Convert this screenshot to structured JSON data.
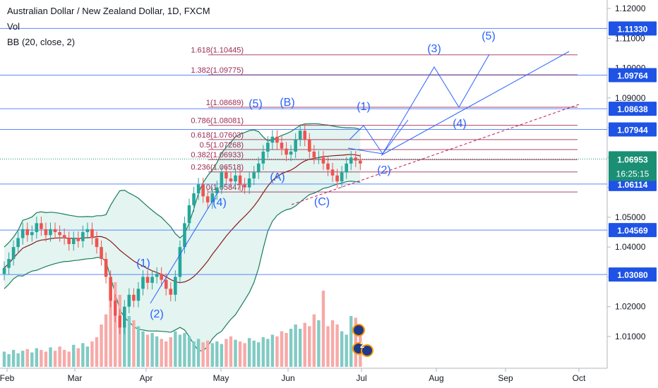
{
  "header": {
    "title": "Australian Dollar / New Zealand Dollar, 1D, FXCM",
    "volume_label": "Vol",
    "bb_label": "BB (20, close, 2)"
  },
  "colors": {
    "up": "#26a69a",
    "down": "#ef5350",
    "vol_up": "#80cbc4",
    "vol_down": "#f7a9a7",
    "bb_fill": "#e0f3ef",
    "bb_band": "#1b7c5a",
    "bb_basis": "#8b1a1a",
    "hline": "#2962ff",
    "fib": "#9c2a4f",
    "wave": "#2962ff",
    "tag_bg": "#1e53e5",
    "current_tag_bg": "#1a8f74",
    "axis_text": "#131722"
  },
  "chart_data": {
    "type": "candlestick",
    "symbol": "Australian Dollar / New Zealand Dollar, 1D, FXCM",
    "indicators": [
      "Vol",
      "BB (20, close, 2)"
    ],
    "x_ticks": [
      "Feb",
      "Mar",
      "Apr",
      "May",
      "Jun",
      "Jul",
      "Aug",
      "Sep",
      "Oct"
    ],
    "y_ticks": [
      "1.12000",
      "1.11000",
      "1.10000",
      "1.09000",
      "1.08000",
      "1.07000",
      "1.06000",
      "1.05000",
      "1.04000",
      "1.03000",
      "1.02000",
      "1.01000"
    ],
    "y_range": [
      1.0,
      1.122
    ],
    "horizontal_levels": [
      1.1133,
      1.09764,
      1.08638,
      1.07944,
      1.06114,
      1.04569,
      1.0308
    ],
    "price_tags": [
      "1.11330",
      "1.09764",
      "1.08638",
      "1.07944",
      "1.06114",
      "1.04569",
      "1.03080"
    ],
    "current_price": "1.06953",
    "countdown": "16:25:15",
    "fib_levels": [
      {
        "label": "1.618(1.10445)",
        "value": 1.10445
      },
      {
        "label": "1.382(1.09775)",
        "value": 1.09775
      },
      {
        "label": "1(1.08689)",
        "value": 1.08689
      },
      {
        "label": "0.786(1.08081)",
        "value": 1.08081
      },
      {
        "label": "0.618(1.07603)",
        "value": 1.07603
      },
      {
        "label": "0.5(1.07268)",
        "value": 1.07268
      },
      {
        "label": "0.382(1.06933)",
        "value": 1.06933
      },
      {
        "label": "0.236(1.06518)",
        "value": 1.06518
      },
      {
        "label": "0(1.05847)",
        "value": 1.05847
      }
    ],
    "wave_labels": [
      "(1)",
      "(2)",
      "(4)",
      "(5)",
      "(B)",
      "(A)",
      "(C)",
      "(1)",
      "(2)",
      "(3)",
      "(4)",
      "(5)"
    ],
    "candles_close": [
      1.033,
      1.036,
      1.04,
      1.043,
      1.046,
      1.044,
      1.045,
      1.048,
      1.046,
      1.044,
      1.046,
      1.045,
      1.044,
      1.043,
      1.041,
      1.043,
      1.042,
      1.045,
      1.046,
      1.043,
      1.04,
      1.036,
      1.03,
      1.022,
      1.017,
      1.013,
      1.02,
      1.024,
      1.022,
      1.026,
      1.03,
      1.028,
      1.03,
      1.031,
      1.029,
      1.026,
      1.024,
      1.03,
      1.04,
      1.048,
      1.054,
      1.058,
      1.061,
      1.057,
      1.055,
      1.058,
      1.06,
      1.065,
      1.063,
      1.062,
      1.064,
      1.061,
      1.06,
      1.063,
      1.065,
      1.068,
      1.072,
      1.075,
      1.077,
      1.075,
      1.073,
      1.071,
      1.072,
      1.076,
      1.079,
      1.076,
      1.072,
      1.07,
      1.07,
      1.068,
      1.066,
      1.064,
      1.062,
      1.065,
      1.068,
      1.07,
      1.069,
      1.068
    ],
    "volume": [
      0.18,
      0.15,
      0.2,
      0.16,
      0.19,
      0.21,
      0.17,
      0.22,
      0.2,
      0.18,
      0.23,
      0.19,
      0.24,
      0.2,
      0.18,
      0.26,
      0.22,
      0.28,
      0.24,
      0.3,
      0.35,
      0.5,
      0.62,
      0.8,
      1.0,
      0.85,
      0.7,
      0.6,
      0.55,
      0.48,
      0.42,
      0.38,
      0.4,
      0.36,
      0.33,
      0.3,
      0.35,
      0.42,
      0.38,
      0.4,
      0.36,
      0.3,
      0.33,
      0.29,
      0.31,
      0.28,
      0.3,
      0.27,
      0.33,
      0.36,
      0.32,
      0.3,
      0.28,
      0.34,
      0.31,
      0.29,
      0.35,
      0.33,
      0.38,
      0.36,
      0.42,
      0.4,
      0.45,
      0.5,
      0.45,
      0.52,
      0.48,
      0.62,
      0.55,
      0.9,
      0.48,
      0.55,
      0.5,
      0.42,
      0.38,
      0.6,
      0.58,
      0.4
    ]
  }
}
